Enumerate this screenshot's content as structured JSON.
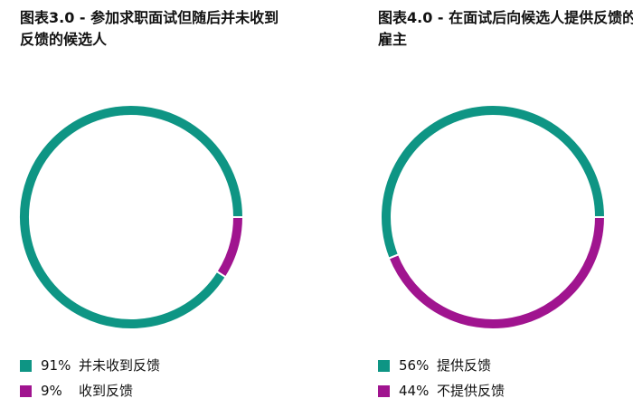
{
  "colors": {
    "teal": "#0e9584",
    "magenta": "#a0148f"
  },
  "chart_data": [
    {
      "type": "pie",
      "title": "图表3.0 - 参加求职面试但随后并未收到反馈的候选人",
      "slices": [
        {
          "label": "并未收到反馈",
          "value": 91,
          "pct_label": "91%",
          "color": "#0e9584"
        },
        {
          "label": "收到反馈",
          "value": 9,
          "pct_label": "9%",
          "color": "#a0148f"
        }
      ],
      "legend_position": "bottom-left"
    },
    {
      "type": "pie",
      "title": "图表4.0 - 在面试后向候选人提供反馈的雇主",
      "slices": [
        {
          "label": "提供反馈",
          "value": 56,
          "pct_label": "56%",
          "color": "#0e9584"
        },
        {
          "label": "不提供反馈",
          "value": 44,
          "pct_label": "44%",
          "color": "#a0148f"
        }
      ],
      "legend_position": "bottom-left"
    }
  ]
}
